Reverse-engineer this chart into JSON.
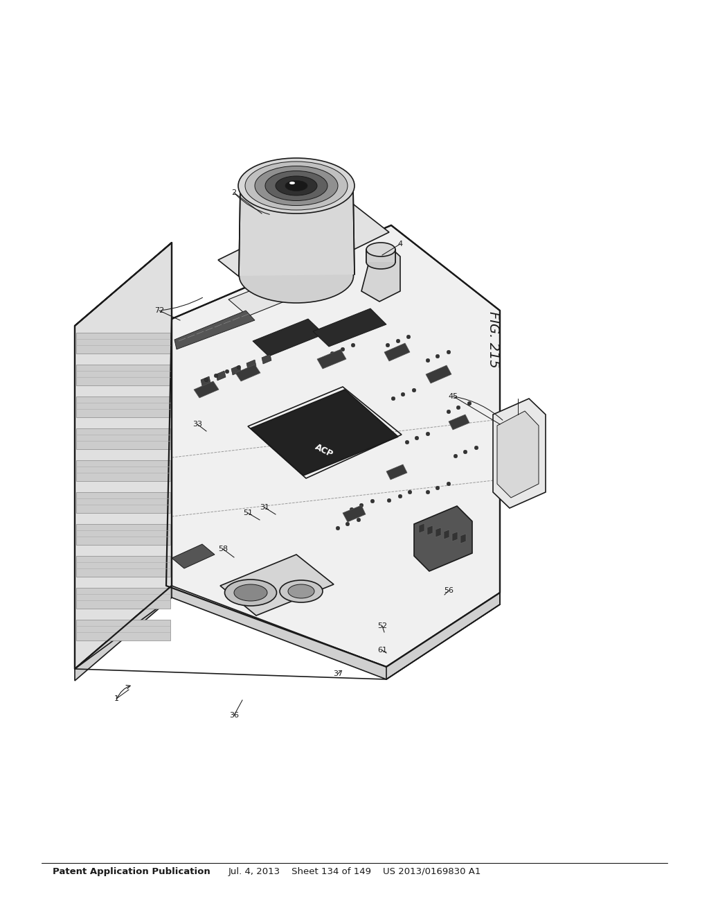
{
  "title_left": "Patent Application Publication",
  "title_mid": "Jul. 4, 2013    Sheet 134 of 149    US 2013/0169830 A1",
  "fig_label": "FIG. 215",
  "background": "#ffffff",
  "line_color": "#1a1a1a",
  "lw_main": 1.2,
  "lw_thick": 1.6,
  "lw_thin": 0.7
}
